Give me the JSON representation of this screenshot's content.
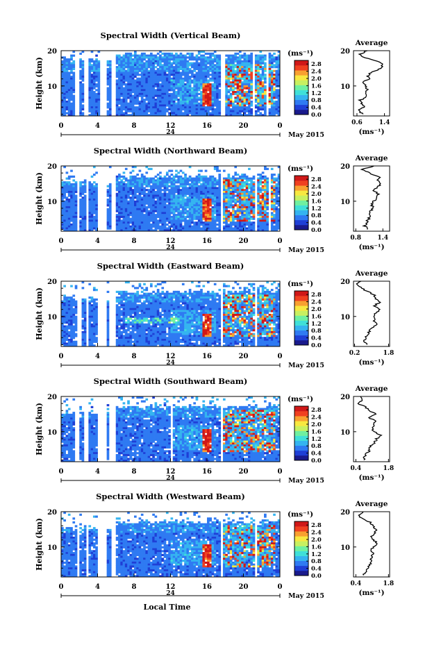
{
  "figure": {
    "xlabel": "Local Time",
    "colorbar_unit": "(ms⁻¹)",
    "colorbar_ticks": [
      "0.0",
      "0.4",
      "0.8",
      "1.2",
      "1.6",
      "2.0",
      "2.4",
      "2.8"
    ],
    "height_label": "Height (km)",
    "date_mark": "24",
    "month_label": "May 2015",
    "avg_title": "Average",
    "avg_unit": "(ms⁻¹)",
    "palette": [
      "#1a1a8c",
      "#1f3fd6",
      "#2f7af2",
      "#35b4f0",
      "#3fe0d8",
      "#6ff0a0",
      "#c8f060",
      "#f8e840",
      "#f8a030",
      "#f04020",
      "#d01818"
    ]
  },
  "chart_data": [
    {
      "type": "heatmap",
      "title": "Spectral Width (Vertical Beam)",
      "xlabel": "Local Time",
      "ylabel": "Height (km)",
      "x_ticks": [
        "0",
        "4",
        "8",
        "12",
        "16",
        "20",
        "0"
      ],
      "y_ticks": [
        "10",
        "20"
      ],
      "xlim": [
        0,
        24
      ],
      "ylim": [
        1.5,
        20
      ],
      "colorbar": {
        "label": "(ms⁻¹)",
        "range": [
          0,
          3.0
        ],
        "ticks": [
          "0.0",
          "0.4",
          "0.8",
          "1.2",
          "1.6",
          "2.0",
          "2.4",
          "2.8"
        ]
      },
      "average_profile": {
        "title": "Average",
        "xlabel": "(ms⁻¹)",
        "x_ticks": [
          "0.6",
          "1.4"
        ],
        "xlim": [
          0.5,
          1.55
        ],
        "y_ticks": [
          "10",
          "20"
        ],
        "height": [
          2,
          3,
          4,
          5,
          6,
          7,
          8,
          9,
          10,
          11,
          12,
          13,
          14,
          15,
          16,
          17,
          18,
          19,
          20
        ],
        "values": [
          0.75,
          0.65,
          0.8,
          0.72,
          0.7,
          0.88,
          0.82,
          0.9,
          0.85,
          0.78,
          0.95,
          0.92,
          1.05,
          1.3,
          1.35,
          1.2,
          0.8,
          0.7,
          0.9
        ]
      }
    },
    {
      "type": "heatmap",
      "title": "Spectral Width (Northward Beam)",
      "xlabel": "Local Time",
      "ylabel": "Height (km)",
      "x_ticks": [
        "0",
        "4",
        "8",
        "12",
        "16",
        "20",
        "0"
      ],
      "y_ticks": [
        "10",
        "20"
      ],
      "xlim": [
        0,
        24
      ],
      "ylim": [
        1.5,
        20
      ],
      "colorbar": {
        "label": "(ms⁻¹)",
        "range": [
          0,
          3.0
        ],
        "ticks": [
          "0.0",
          "0.4",
          "0.8",
          "1.2",
          "1.6",
          "2.0",
          "2.4",
          "2.8"
        ]
      },
      "average_profile": {
        "title": "Average",
        "xlabel": "(ms⁻¹)",
        "x_ticks": [
          "0.8",
          "1.4"
        ],
        "xlim": [
          0.75,
          1.55
        ],
        "y_ticks": [
          "10",
          "20"
        ],
        "height": [
          2,
          3,
          4,
          5,
          6,
          7,
          8,
          9,
          10,
          11,
          12,
          13,
          14,
          15,
          16,
          17,
          18,
          19,
          20
        ],
        "values": [
          1.05,
          1.0,
          1.05,
          1.08,
          1.1,
          1.1,
          1.2,
          1.15,
          1.2,
          1.25,
          1.3,
          1.2,
          1.28,
          1.35,
          1.3,
          1.32,
          1.1,
          0.95,
          1.2
        ]
      }
    },
    {
      "type": "heatmap",
      "title": "Spectral Width (Eastward Beam)",
      "xlabel": "Local Time",
      "ylabel": "Height (km)",
      "x_ticks": [
        "0",
        "4",
        "8",
        "12",
        "16",
        "20",
        "0"
      ],
      "y_ticks": [
        "10",
        "20"
      ],
      "xlim": [
        0,
        24
      ],
      "ylim": [
        1.5,
        20
      ],
      "colorbar": {
        "label": "(ms⁻¹)",
        "range": [
          0,
          3.0
        ],
        "ticks": [
          "0.0",
          "0.4",
          "0.8",
          "1.2",
          "1.6",
          "2.0",
          "2.4",
          "2.8"
        ]
      },
      "average_profile": {
        "title": "Average",
        "xlabel": "(ms⁻¹)",
        "x_ticks": [
          "0.2",
          "1.8"
        ],
        "xlim": [
          0.15,
          1.85
        ],
        "y_ticks": [
          "10",
          "20"
        ],
        "height": [
          2,
          3,
          4,
          5,
          6,
          7,
          8,
          9,
          10,
          11,
          12,
          13,
          14,
          15,
          16,
          17,
          18,
          19,
          20
        ],
        "values": [
          0.8,
          0.65,
          0.75,
          0.8,
          0.9,
          1.1,
          1.3,
          1.1,
          1.15,
          1.2,
          1.35,
          1.1,
          1.4,
          1.2,
          1.15,
          0.9,
          0.5,
          0.3,
          0.5
        ]
      }
    },
    {
      "type": "heatmap",
      "title": "Spectral Width (Southward Beam)",
      "xlabel": "Local Time",
      "ylabel": "Height (km)",
      "x_ticks": [
        "0",
        "4",
        "8",
        "12",
        "16",
        "20",
        "0"
      ],
      "y_ticks": [
        "10",
        "20"
      ],
      "xlim": [
        0,
        24
      ],
      "ylim": [
        1.5,
        20
      ],
      "colorbar": {
        "label": "(ms⁻¹)",
        "range": [
          0,
          3.0
        ],
        "ticks": [
          "0.0",
          "0.4",
          "0.8",
          "1.2",
          "1.6",
          "2.0",
          "2.4",
          "2.8"
        ]
      },
      "average_profile": {
        "title": "Average",
        "xlabel": "(ms⁻¹)",
        "x_ticks": [
          "0.4",
          "1.8"
        ],
        "xlim": [
          0.3,
          1.85
        ],
        "y_ticks": [
          "10",
          "20"
        ],
        "height": [
          2,
          3,
          4,
          5,
          6,
          7,
          8,
          9,
          10,
          11,
          12,
          13,
          14,
          15,
          16,
          17,
          18,
          19,
          20
        ],
        "values": [
          0.8,
          0.75,
          0.9,
          1.0,
          1.05,
          1.2,
          1.3,
          1.45,
          1.2,
          1.1,
          1.15,
          1.2,
          1.0,
          1.3,
          0.95,
          0.8,
          0.5,
          0.7,
          0.6
        ]
      }
    },
    {
      "type": "heatmap",
      "title": "Spectral Width (Westward Beam)",
      "xlabel": "Local Time",
      "ylabel": "Height (km)",
      "x_ticks": [
        "0",
        "4",
        "8",
        "12",
        "16",
        "20",
        "0"
      ],
      "y_ticks": [
        "10",
        "20"
      ],
      "xlim": [
        0,
        24
      ],
      "ylim": [
        1.5,
        20
      ],
      "colorbar": {
        "label": "(ms⁻¹)",
        "range": [
          0,
          3.0
        ],
        "ticks": [
          "0.0",
          "0.4",
          "0.8",
          "1.2",
          "1.6",
          "2.0",
          "2.4",
          "2.8"
        ]
      },
      "average_profile": {
        "title": "Average",
        "xlabel": "(ms⁻¹)",
        "x_ticks": [
          "0.4",
          "1.8"
        ],
        "xlim": [
          0.3,
          1.85
        ],
        "y_ticks": [
          "10",
          "20"
        ],
        "height": [
          2,
          3,
          4,
          5,
          6,
          7,
          8,
          9,
          10,
          11,
          12,
          13,
          14,
          15,
          16,
          17,
          18,
          19,
          20
        ],
        "values": [
          0.7,
          0.8,
          0.95,
          1.0,
          1.1,
          1.05,
          1.15,
          1.0,
          1.2,
          1.35,
          1.15,
          1.1,
          1.2,
          1.25,
          1.1,
          1.0,
          0.7,
          0.5,
          0.7
        ]
      }
    }
  ]
}
